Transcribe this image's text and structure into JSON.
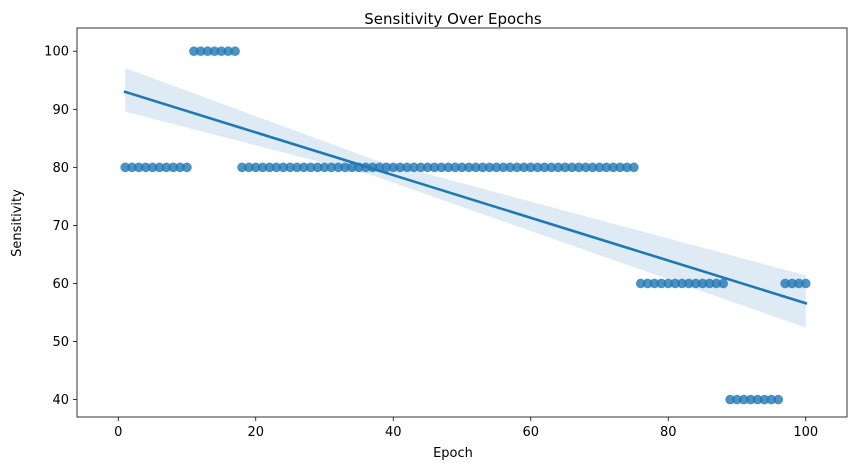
{
  "chart_data": {
    "type": "scatter",
    "title": "Sensitivity Over Epochs",
    "xlabel": "Epoch",
    "ylabel": "Sensitivity",
    "xlim": [
      -6,
      106
    ],
    "ylim": [
      37,
      104
    ],
    "x_ticks": [
      0,
      20,
      40,
      60,
      80,
      100
    ],
    "y_ticks": [
      40,
      50,
      60,
      70,
      80,
      90,
      100
    ],
    "grid": false,
    "legend": "none",
    "colors": {
      "points": "#1f77b4",
      "line": "#1f77b4",
      "band": "#1f77b4"
    },
    "segments": [
      {
        "x_from": 1,
        "x_to": 10,
        "y": 80
      },
      {
        "x_from": 11,
        "x_to": 17,
        "y": 100
      },
      {
        "x_from": 18,
        "x_to": 75,
        "y": 80
      },
      {
        "x_from": 76,
        "x_to": 88,
        "y": 60
      },
      {
        "x_from": 89,
        "x_to": 96,
        "y": 40
      },
      {
        "x_from": 97,
        "x_to": 100,
        "y": 60
      }
    ],
    "regression": {
      "x_range": [
        1,
        100
      ],
      "y_at_start": 93.0,
      "y_at_end": 56.6,
      "ci_lower": [
        [
          1,
          89.6
        ],
        [
          37,
          78.6
        ],
        [
          100,
          52.4
        ]
      ],
      "ci_upper": [
        [
          1,
          97.1
        ],
        [
          37,
          81.4
        ],
        [
          100,
          61.4
        ]
      ]
    }
  }
}
